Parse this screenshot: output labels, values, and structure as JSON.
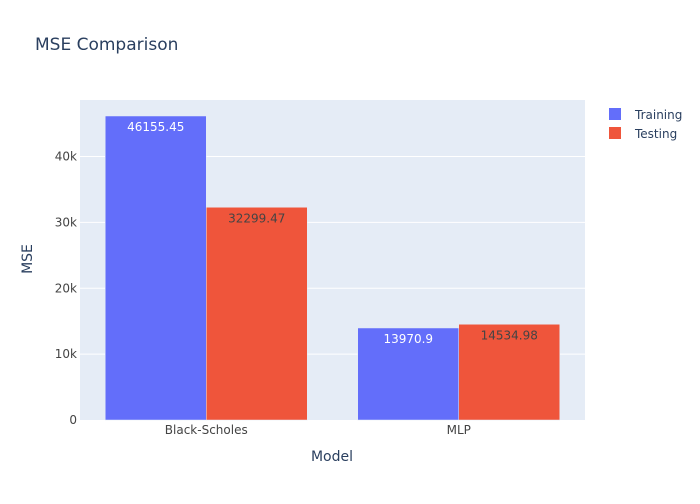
{
  "chart_data": {
    "type": "bar",
    "title": "MSE Comparison",
    "xlabel": "Model",
    "ylabel": "MSE",
    "categories": [
      "Black-Scholes",
      "MLP"
    ],
    "series": [
      {
        "name": "Training",
        "values": [
          46155.45,
          13970.9
        ],
        "color": "#636efa",
        "label_color": "#ffffff"
      },
      {
        "name": "Testing",
        "values": [
          32299.47,
          14534.98
        ],
        "color": "#ef553b",
        "label_color": "#444444"
      }
    ],
    "data_labels": [
      [
        "46155.45",
        "13970.9"
      ],
      [
        "32299.47",
        "14534.98"
      ]
    ],
    "ylim": [
      0,
      48584.68
    ],
    "yticks": [
      0,
      10000,
      20000,
      30000,
      40000
    ],
    "ytick_labels": [
      "0",
      "10k",
      "20k",
      "30k",
      "40k"
    ],
    "grid": true,
    "legend_position": "top-right",
    "colors": {
      "plot_bg": "#e5ecf6",
      "paper_bg": "#ffffff",
      "grid": "#ffffff",
      "text": "#2a3f5f",
      "tick_text": "#444444"
    }
  }
}
